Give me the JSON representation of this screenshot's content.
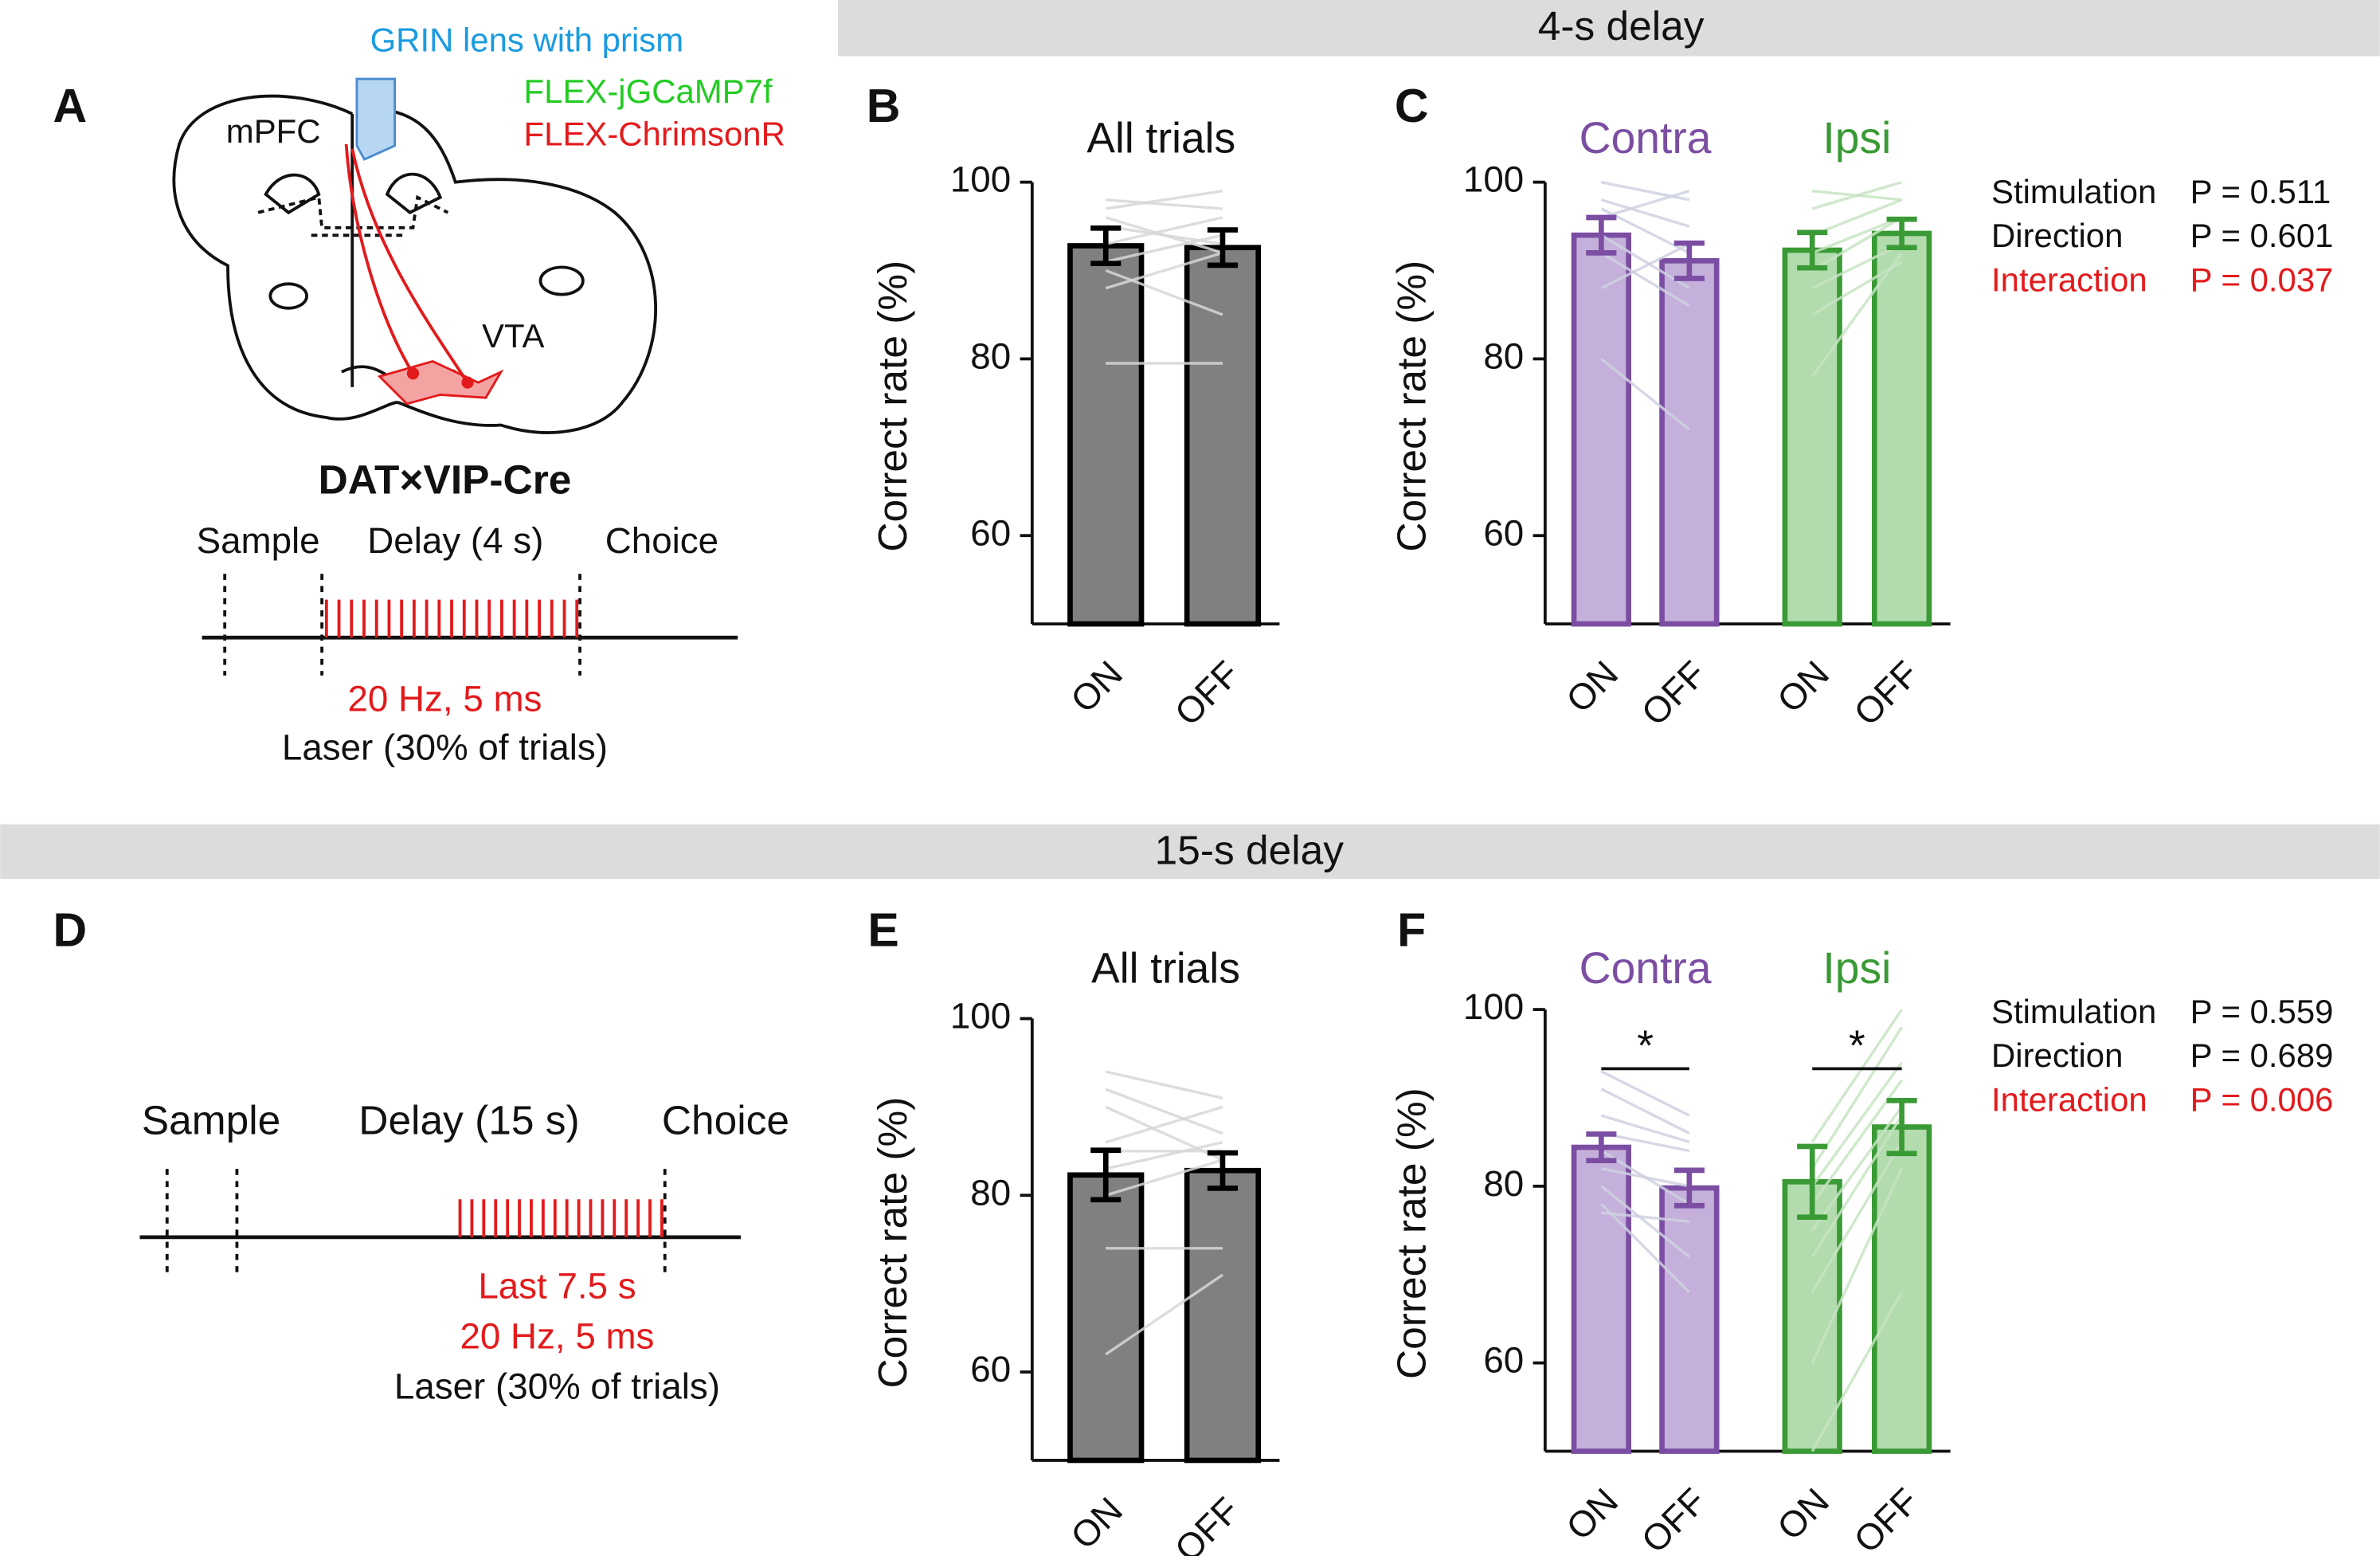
{
  "headers": [
    "4-s delay",
    "15-s delay"
  ],
  "panel_letters": [
    "A",
    "B",
    "C",
    "D",
    "E",
    "F"
  ],
  "diagram_a": {
    "lens": "GRIN lens with prism",
    "virus1": "FLEX-jGCaMP7f",
    "virus2": "FLEX-ChrimsonR",
    "region1": "mPFC",
    "region2": "VTA",
    "mouse": "DAT×VIP-Cre",
    "epochs": [
      "Sample",
      "Delay (4 s)",
      "Choice"
    ],
    "stim": "20 Hz, 5 ms",
    "laser": "Laser (30% of trials)"
  },
  "diagram_d": {
    "epochs": [
      "Sample",
      "Delay (15 s)",
      "Choice"
    ],
    "window": "Last 7.5 s",
    "stim": "20 Hz, 5 ms",
    "laser": "Laser (30% of trials)"
  },
  "chart_data": [
    {
      "type": "bar",
      "title": "All trials",
      "ylabel": "Correct rate (%)",
      "categories": [
        "ON",
        "OFF"
      ],
      "ylim": [
        50,
        100
      ],
      "yticks": [
        60,
        80,
        100
      ],
      "groups": [
        {
          "color": "#000000",
          "fill": "#808080",
          "line_color": "#d8d8d8",
          "values": [
            92.8,
            92.6
          ],
          "errors": [
            2,
            2
          ],
          "lines": [
            [
              98,
              97
            ],
            [
              97,
              99
            ],
            [
              95,
              93
            ],
            [
              93,
              96
            ],
            [
              91,
              94
            ],
            [
              90,
              85
            ],
            [
              88,
              92
            ],
            [
              79.5,
              79.5
            ],
            [
              96,
              92
            ]
          ]
        }
      ]
    },
    {
      "type": "bar",
      "ylabel": "Correct rate (%)",
      "categories": [
        "ON",
        "OFF",
        "ON",
        "OFF"
      ],
      "ylim": [
        50,
        100
      ],
      "yticks": [
        60,
        80,
        100
      ],
      "groups": [
        {
          "name": "Contra",
          "color": "#7b4ea3",
          "fill": "#c4b0da",
          "line_color": "#cfd2e2",
          "values": [
            94,
            91.1
          ],
          "errors": [
            2,
            2
          ],
          "lines": [
            [
              100,
              98
            ],
            [
              98,
              95
            ],
            [
              96,
              99
            ],
            [
              94,
              88
            ],
            [
              92,
              86
            ],
            [
              88,
              93
            ],
            [
              80,
              72
            ],
            [
              97,
              92
            ]
          ]
        },
        {
          "name": "Ipsi",
          "color": "#3a9a35",
          "fill": "#b2dcae",
          "line_color": "#c8e4c4",
          "values": [
            92.3,
            94.2
          ],
          "errors": [
            2,
            1.6
          ],
          "lines": [
            [
              97,
              100
            ],
            [
              94,
              98
            ],
            [
              92,
              96
            ],
            [
              90,
              96
            ],
            [
              88,
              93
            ],
            [
              85,
              91
            ],
            [
              78,
              92
            ],
            [
              99,
              98
            ]
          ]
        }
      ],
      "stats": [
        {
          "name": "Stimulation",
          "p": "P = 0.511"
        },
        {
          "name": "Direction",
          "p": "P = 0.601"
        },
        {
          "name": "Interaction",
          "p": "P = 0.037",
          "color": "#e31a1c"
        }
      ]
    },
    {
      "type": "bar",
      "title": "All trials",
      "ylabel": "Correct rate (%)",
      "categories": [
        "ON",
        "OFF"
      ],
      "ylim": [
        50,
        100
      ],
      "yticks": [
        60,
        80,
        100
      ],
      "groups": [
        {
          "color": "#000000",
          "fill": "#808080",
          "line_color": "#d8d8d8",
          "values": [
            82.3,
            82.8
          ],
          "errors": [
            2.8,
            2
          ],
          "lines": [
            [
              94,
              91
            ],
            [
              92,
              87
            ],
            [
              90,
              84
            ],
            [
              86,
              90
            ],
            [
              85,
              85
            ],
            [
              83,
              86
            ],
            [
              80,
              84
            ],
            [
              74,
              74
            ],
            [
              62,
              71
            ]
          ]
        }
      ]
    },
    {
      "type": "bar",
      "ylabel": "Correct rate (%)",
      "categories": [
        "ON",
        "OFF",
        "ON",
        "OFF"
      ],
      "ylim": [
        50,
        100
      ],
      "yticks": [
        60,
        80,
        100
      ],
      "groups": [
        {
          "name": "Contra",
          "color": "#7b4ea3",
          "fill": "#c4b0da",
          "line_color": "#cfd2e2",
          "values": [
            84.4,
            79.8
          ],
          "errors": [
            1.5,
            2
          ],
          "significance": "*",
          "lines": [
            [
              93,
              88
            ],
            [
              91,
              86
            ],
            [
              88,
              85
            ],
            [
              86,
              84
            ],
            [
              84,
              78
            ],
            [
              82,
              80
            ],
            [
              80,
              72
            ],
            [
              78,
              68
            ],
            [
              77,
              76
            ]
          ]
        },
        {
          "name": "Ipsi",
          "color": "#3a9a35",
          "fill": "#b2dcae",
          "line_color": "#c8e4c4",
          "values": [
            80.5,
            86.7
          ],
          "errors": [
            4,
            3
          ],
          "significance": "*",
          "lines": [
            [
              85,
              100
            ],
            [
              82,
              98
            ],
            [
              80,
              94
            ],
            [
              78,
              92
            ],
            [
              75,
              89
            ],
            [
              72,
              88
            ],
            [
              68,
              85
            ],
            [
              60,
              82
            ],
            [
              50,
              68
            ]
          ]
        }
      ],
      "stats": [
        {
          "name": "Stimulation",
          "p": "P = 0.559"
        },
        {
          "name": "Direction",
          "p": "P = 0.689"
        },
        {
          "name": "Interaction",
          "p": "P = 0.006",
          "color": "#e31a1c"
        }
      ]
    }
  ]
}
